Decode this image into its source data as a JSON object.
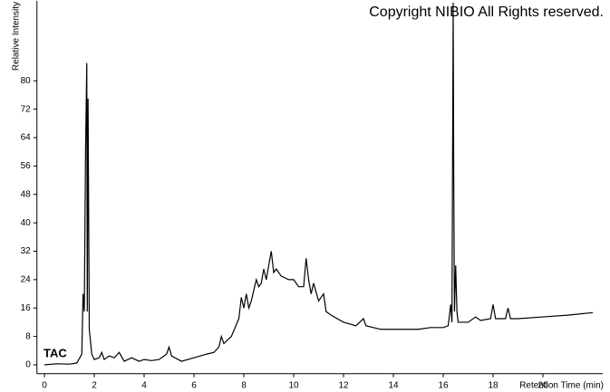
{
  "chart_data": {
    "type": "line",
    "xlabel": "Retention Time (min)",
    "ylabel": "Relative Intensity",
    "annotations": [
      "Copyright NIBIO All Rights reserved.",
      "TAC"
    ],
    "color": "#000000",
    "xlim": [
      -0.3,
      22.4
    ],
    "ylim": [
      -2.5,
      102.5
    ],
    "xticks": [
      0,
      2,
      4,
      6,
      8,
      10,
      12,
      14,
      16,
      18,
      20
    ],
    "yticks": [
      0,
      8,
      16,
      24,
      32,
      40,
      48,
      56,
      64,
      72,
      80
    ],
    "x": [
      0,
      0.5,
      1.0,
      1.3,
      1.5,
      1.55,
      1.6,
      1.65,
      1.7,
      1.72,
      1.75,
      1.8,
      1.9,
      2.0,
      2.2,
      2.3,
      2.4,
      2.6,
      2.8,
      3.0,
      3.2,
      3.5,
      3.8,
      4.0,
      4.3,
      4.6,
      4.9,
      5.0,
      5.1,
      5.5,
      6.0,
      6.5,
      6.8,
      7.0,
      7.1,
      7.2,
      7.5,
      7.8,
      7.9,
      8.0,
      8.1,
      8.2,
      8.3,
      8.4,
      8.5,
      8.6,
      8.7,
      8.8,
      8.9,
      9.0,
      9.1,
      9.2,
      9.3,
      9.5,
      9.8,
      10.0,
      10.2,
      10.4,
      10.5,
      10.6,
      10.7,
      10.8,
      11.0,
      11.2,
      11.3,
      11.5,
      12.0,
      12.5,
      12.8,
      12.9,
      13.5,
      14.0,
      14.5,
      15.0,
      15.5,
      16.0,
      16.2,
      16.3,
      16.35,
      16.4,
      16.42,
      16.45,
      16.5,
      16.55,
      16.6,
      16.8,
      17.0,
      17.3,
      17.5,
      17.9,
      18.0,
      18.1,
      18.5,
      18.6,
      18.7,
      19.0,
      20.0,
      21.0,
      22.0
    ],
    "values": [
      0,
      0.3,
      0.2,
      0.5,
      3,
      20,
      15,
      60,
      85,
      15,
      75,
      10,
      3,
      1.5,
      2,
      3.5,
      1.5,
      2.5,
      2,
      3.5,
      1,
      2,
      1,
      1.5,
      1.2,
      1.5,
      3,
      5,
      2.5,
      1,
      2,
      3,
      3.5,
      5,
      8,
      6,
      8,
      13,
      19,
      16,
      20,
      16,
      18,
      21,
      24,
      22,
      23,
      27,
      24,
      28,
      32,
      26,
      27,
      25,
      24,
      24,
      22,
      22,
      30,
      24,
      20,
      23,
      18,
      20,
      15,
      14,
      12,
      11,
      13,
      11,
      10,
      10,
      10,
      10,
      10.5,
      10.5,
      11,
      17,
      12,
      102,
      56,
      15,
      28,
      15,
      12,
      12,
      12,
      13.5,
      12.5,
      13,
      17,
      13,
      13,
      16,
      13,
      13,
      13.5,
      14,
      14.7
    ]
  }
}
